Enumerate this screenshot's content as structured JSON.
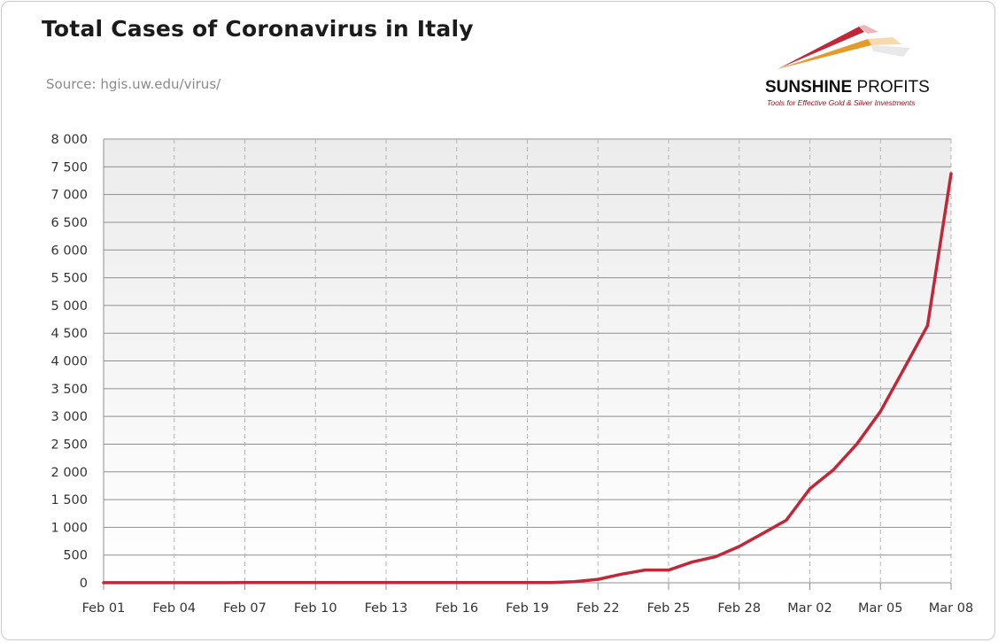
{
  "title": "Total Cases of Coronavirus in Italy",
  "source": "Source: hgis.uw.edu/virus/",
  "logo": {
    "brand_bold": "SUNSHINE",
    "brand_light": " PROFITS",
    "tagline": "Tools for Effective Gold & Silver Investments"
  },
  "colors": {
    "line": "#c0283a",
    "grid": "#a9a9a9",
    "plot_bg_top": "#ececec",
    "plot_bg_bottom": "#ffffff"
  },
  "chart_data": {
    "type": "line",
    "title": "Total Cases of Coronavirus in Italy",
    "xlabel": "",
    "ylabel": "",
    "ylim": [
      0,
      8000
    ],
    "xlim": [
      "2020-02-01",
      "2020-03-08"
    ],
    "grid": true,
    "y_ticks": [
      {
        "value": 0,
        "label": "0"
      },
      {
        "value": 500,
        "label": "500"
      },
      {
        "value": 1000,
        "label": "1 000"
      },
      {
        "value": 1500,
        "label": "1 500"
      },
      {
        "value": 2000,
        "label": "2 000"
      },
      {
        "value": 2500,
        "label": "2 500"
      },
      {
        "value": 3000,
        "label": "3 000"
      },
      {
        "value": 3500,
        "label": "3 500"
      },
      {
        "value": 4000,
        "label": "4 000"
      },
      {
        "value": 4500,
        "label": "4 500"
      },
      {
        "value": 5000,
        "label": "5 000"
      },
      {
        "value": 5500,
        "label": "5 500"
      },
      {
        "value": 6000,
        "label": "6 000"
      },
      {
        "value": 6500,
        "label": "6 500"
      },
      {
        "value": 7000,
        "label": "7 000"
      },
      {
        "value": 7500,
        "label": "7 500"
      },
      {
        "value": 8000,
        "label": "8 000"
      }
    ],
    "x_ticks": [
      {
        "date": "2020-02-01",
        "label": "Feb 01"
      },
      {
        "date": "2020-02-04",
        "label": "Feb 04"
      },
      {
        "date": "2020-02-07",
        "label": "Feb 07"
      },
      {
        "date": "2020-02-10",
        "label": "Feb 10"
      },
      {
        "date": "2020-02-13",
        "label": "Feb 13"
      },
      {
        "date": "2020-02-16",
        "label": "Feb 16"
      },
      {
        "date": "2020-02-19",
        "label": "Feb 19"
      },
      {
        "date": "2020-02-22",
        "label": "Feb 22"
      },
      {
        "date": "2020-02-25",
        "label": "Feb 25"
      },
      {
        "date": "2020-02-28",
        "label": "Feb 28"
      },
      {
        "date": "2020-03-02",
        "label": "Mar 02"
      },
      {
        "date": "2020-03-05",
        "label": "Mar 05"
      },
      {
        "date": "2020-03-08",
        "label": "Mar 08"
      }
    ],
    "series": [
      {
        "points": [
          {
            "x": "2020-02-01",
            "y": 2
          },
          {
            "x": "2020-02-02",
            "y": 2
          },
          {
            "x": "2020-02-03",
            "y": 2
          },
          {
            "x": "2020-02-04",
            "y": 2
          },
          {
            "x": "2020-02-05",
            "y": 2
          },
          {
            "x": "2020-02-06",
            "y": 2
          },
          {
            "x": "2020-02-07",
            "y": 3
          },
          {
            "x": "2020-02-08",
            "y": 3
          },
          {
            "x": "2020-02-09",
            "y": 3
          },
          {
            "x": "2020-02-10",
            "y": 3
          },
          {
            "x": "2020-02-11",
            "y": 3
          },
          {
            "x": "2020-02-12",
            "y": 3
          },
          {
            "x": "2020-02-13",
            "y": 3
          },
          {
            "x": "2020-02-14",
            "y": 3
          },
          {
            "x": "2020-02-15",
            "y": 3
          },
          {
            "x": "2020-02-16",
            "y": 3
          },
          {
            "x": "2020-02-17",
            "y": 3
          },
          {
            "x": "2020-02-18",
            "y": 3
          },
          {
            "x": "2020-02-19",
            "y": 3
          },
          {
            "x": "2020-02-20",
            "y": 3
          },
          {
            "x": "2020-02-21",
            "y": 20
          },
          {
            "x": "2020-02-22",
            "y": 62
          },
          {
            "x": "2020-02-23",
            "y": 155
          },
          {
            "x": "2020-02-24",
            "y": 229
          },
          {
            "x": "2020-02-25",
            "y": 229
          },
          {
            "x": "2020-02-26",
            "y": 374
          },
          {
            "x": "2020-02-27",
            "y": 470
          },
          {
            "x": "2020-02-28",
            "y": 655
          },
          {
            "x": "2020-02-29",
            "y": 889
          },
          {
            "x": "2020-03-01",
            "y": 1128
          },
          {
            "x": "2020-03-02",
            "y": 1694
          },
          {
            "x": "2020-03-03",
            "y": 2036
          },
          {
            "x": "2020-03-04",
            "y": 2502
          },
          {
            "x": "2020-03-05",
            "y": 3089
          },
          {
            "x": "2020-03-06",
            "y": 3858
          },
          {
            "x": "2020-03-07",
            "y": 4636
          },
          {
            "x": "2020-03-08",
            "y": 7375
          }
        ]
      }
    ]
  }
}
